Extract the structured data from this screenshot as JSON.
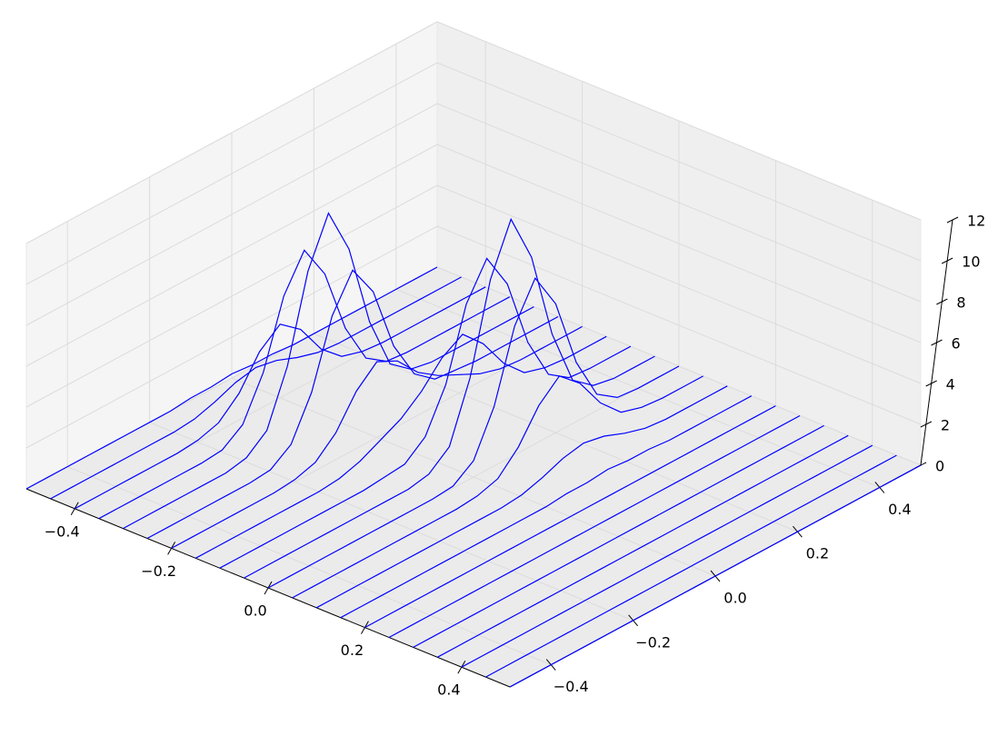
{
  "chart_data": {
    "type": "wireframe",
    "color": "#0000ff",
    "xlim": [
      -0.5,
      0.5
    ],
    "ylim": [
      -0.5,
      0.5
    ],
    "zlim": [
      0,
      12
    ],
    "xticks": [
      {
        "value": -0.4,
        "label": "−0.4"
      },
      {
        "value": -0.2,
        "label": "−0.2"
      },
      {
        "value": 0,
        "label": "0.0"
      },
      0.2,
      0.4
    ],
    "yticks": [
      {
        "value": -0.4,
        "label": "−0.4"
      },
      {
        "value": -0.2,
        "label": "−0.2"
      },
      {
        "value": 0,
        "label": "0.0"
      },
      0.2,
      0.4
    ],
    "zticks": [
      0,
      2,
      4,
      6,
      8,
      10,
      12
    ],
    "grid": true,
    "x": [
      -0.5,
      -0.45,
      -0.4,
      -0.35,
      -0.3,
      -0.25,
      -0.2,
      -0.15,
      -0.1,
      -0.05,
      0,
      0.05,
      0.1,
      0.15,
      0.2,
      0.25,
      0.3,
      0.35,
      0.4,
      0.45,
      0.5
    ],
    "y": [
      -0.5,
      -0.45,
      -0.4,
      -0.35,
      -0.3,
      -0.25,
      -0.2,
      -0.15,
      -0.1,
      -0.05,
      0,
      0.05,
      0.1,
      0.15,
      0.2,
      0.25,
      0.3,
      0.35,
      0.4,
      0.45,
      0.5
    ],
    "z": [
      [
        0,
        0,
        0,
        0,
        0,
        0,
        0,
        0,
        0.1,
        0.1,
        0.2,
        0.1,
        0.1,
        0,
        0,
        0,
        0,
        0,
        0,
        0,
        0
      ],
      [
        0,
        0,
        0,
        0,
        0,
        0,
        0,
        0.1,
        0.4,
        0.8,
        1.0,
        0.8,
        0.4,
        0.1,
        0,
        0,
        0,
        0,
        0,
        0,
        0
      ],
      [
        0,
        0,
        0,
        0,
        0,
        0,
        0.1,
        0.4,
        1.3,
        2.8,
        3.6,
        2.8,
        1.3,
        0.4,
        0.1,
        0,
        0,
        0,
        0,
        0,
        0
      ],
      [
        0,
        0,
        0,
        0,
        0,
        0,
        0.1,
        0.8,
        2.8,
        6.0,
        7.7,
        6.0,
        2.8,
        0.8,
        0.1,
        0,
        0,
        0,
        0,
        0,
        0
      ],
      [
        0,
        0,
        0,
        0,
        0,
        0,
        0.2,
        1.0,
        3.6,
        7.7,
        10,
        7.7,
        3.6,
        1.0,
        0.2,
        0,
        0,
        0,
        0,
        0,
        0
      ],
      [
        0,
        0,
        0,
        0,
        0,
        0,
        0.1,
        0.8,
        2.8,
        6.0,
        7.7,
        6.1,
        2.9,
        1.0,
        0.2,
        0.1,
        0,
        0,
        0,
        0,
        0
      ],
      [
        0,
        0,
        0,
        0,
        0,
        0,
        0.1,
        0.4,
        1.3,
        2.8,
        3.7,
        3.2,
        2.1,
        1.4,
        0.9,
        0.4,
        0.1,
        0,
        0,
        0,
        0
      ],
      [
        0,
        0,
        0,
        0,
        0,
        0,
        0,
        0.1,
        0.4,
        0.9,
        1.4,
        2.2,
        3.3,
        3.9,
        2.9,
        1.4,
        0.4,
        0.1,
        0,
        0,
        0
      ],
      [
        0,
        0,
        0,
        0,
        0,
        0,
        0,
        0,
        0.1,
        0.2,
        1.0,
        3.0,
        6.4,
        8.1,
        6.3,
        2.9,
        0.8,
        0.1,
        0,
        0,
        0
      ],
      [
        0,
        0,
        0,
        0,
        0,
        0,
        0,
        0,
        0,
        0.2,
        1.0,
        3.8,
        8.1,
        10.5,
        8.1,
        3.8,
        1.0,
        0.2,
        0,
        0,
        0
      ],
      [
        0,
        0,
        0,
        0,
        0,
        0,
        0,
        0,
        0,
        0.1,
        0.8,
        2.9,
        6.3,
        8.1,
        6.3,
        2.9,
        0.8,
        0.1,
        0,
        0,
        0
      ],
      [
        0,
        0,
        0,
        0,
        0,
        0,
        0,
        0,
        0,
        0.1,
        0.4,
        1.4,
        2.9,
        3.8,
        2.9,
        1.4,
        0.4,
        0.1,
        0,
        0,
        0
      ],
      [
        0,
        0,
        0,
        0,
        0,
        0,
        0,
        0,
        0,
        0,
        0.1,
        0.4,
        0.8,
        1.0,
        0.8,
        0.4,
        0.1,
        0,
        0,
        0,
        0
      ],
      [
        0,
        0,
        0,
        0,
        0,
        0,
        0,
        0,
        0,
        0,
        0,
        0.1,
        0.1,
        0.2,
        0.1,
        0.1,
        0,
        0,
        0,
        0,
        0
      ],
      [
        0,
        0,
        0,
        0,
        0,
        0,
        0,
        0,
        0,
        0,
        0,
        0,
        0,
        0,
        0,
        0,
        0,
        0,
        0,
        0,
        0
      ],
      [
        0,
        0,
        0,
        0,
        0,
        0,
        0,
        0,
        0,
        0,
        0,
        0,
        0,
        0,
        0,
        0,
        0,
        0,
        0,
        0,
        0
      ],
      [
        0,
        0,
        0,
        0,
        0,
        0,
        0,
        0,
        0,
        0,
        0,
        0,
        0,
        0,
        0,
        0,
        0,
        0,
        0,
        0,
        0
      ],
      [
        0,
        0,
        0,
        0,
        0,
        0,
        0,
        0,
        0,
        0,
        0,
        0,
        0,
        0,
        0,
        0,
        0,
        0,
        0,
        0,
        0
      ],
      [
        0,
        0,
        0,
        0,
        0,
        0,
        0,
        0,
        0,
        0,
        0,
        0,
        0,
        0,
        0,
        0,
        0,
        0,
        0,
        0,
        0
      ],
      [
        0,
        0,
        0,
        0,
        0,
        0,
        0,
        0,
        0,
        0,
        0,
        0,
        0,
        0,
        0,
        0,
        0,
        0,
        0,
        0,
        0
      ],
      [
        0,
        0,
        0,
        0,
        0,
        0,
        0,
        0,
        0,
        0,
        0,
        0,
        0,
        0,
        0,
        0,
        0,
        0,
        0,
        0,
        0
      ]
    ]
  }
}
